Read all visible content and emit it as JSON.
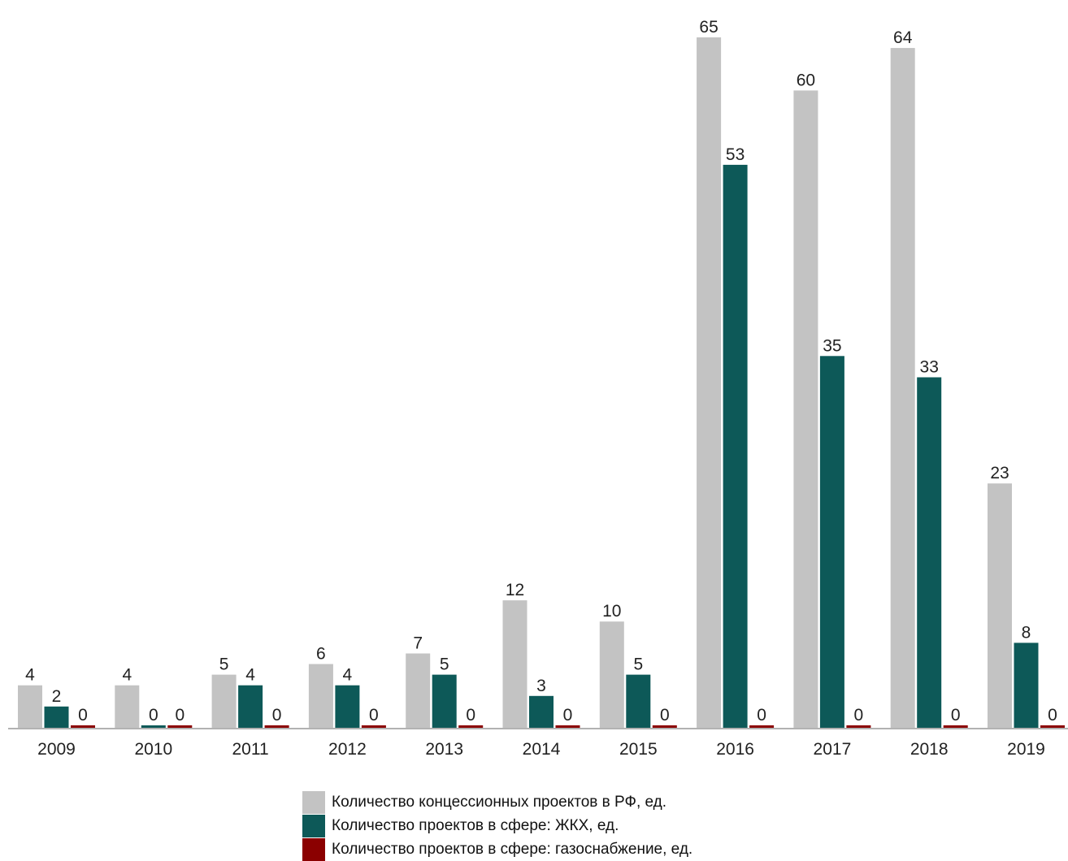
{
  "chart_data": {
    "type": "bar",
    "categories": [
      "2009",
      "2010",
      "2011",
      "2012",
      "2013",
      "2014",
      "2015",
      "2016",
      "2017",
      "2018",
      "2019"
    ],
    "series": [
      {
        "name": "Количество концессионных проектов в РФ, ед.",
        "color": "#c3c3c3",
        "values": [
          4,
          4,
          5,
          6,
          7,
          12,
          10,
          65,
          60,
          64,
          23
        ]
      },
      {
        "name": "Количество проектов в сфере: ЖКХ, ед.",
        "color": "#0d5958",
        "values": [
          2,
          0,
          4,
          4,
          5,
          3,
          5,
          53,
          35,
          33,
          8
        ]
      },
      {
        "name": "Количество проектов в сфере: газоснабжение, ед.",
        "color": "#8b0000",
        "values": [
          0,
          0,
          0,
          0,
          0,
          0,
          0,
          0,
          0,
          0,
          0
        ]
      }
    ],
    "title": "",
    "xlabel": "",
    "ylabel": "",
    "ylim": [
      0,
      65
    ],
    "grid": false,
    "data_labels": true,
    "legend_position": "bottom"
  }
}
